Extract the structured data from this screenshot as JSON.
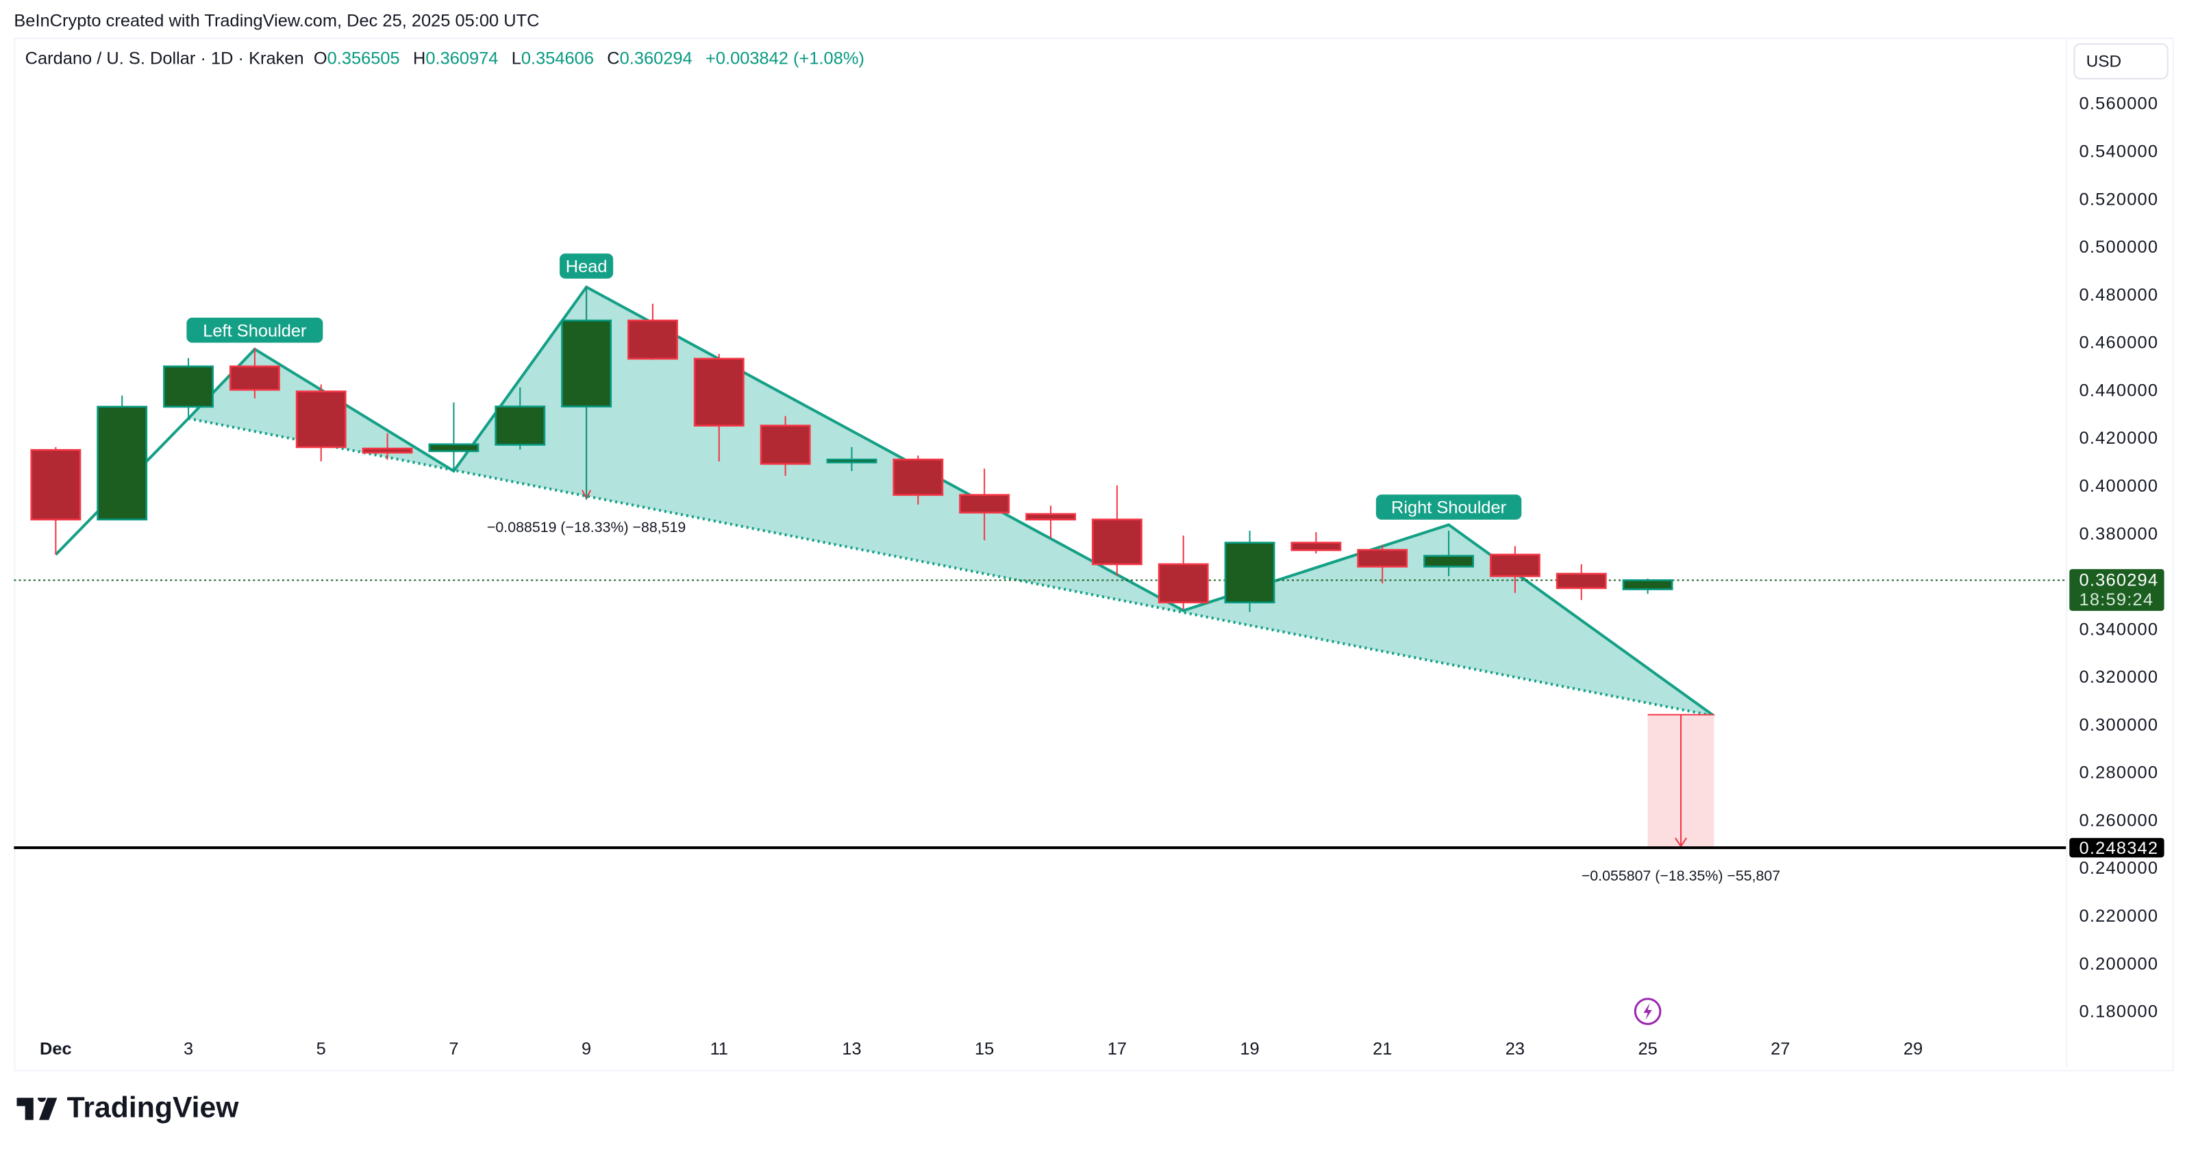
{
  "caption": "BeInCrypto created with TradingView.com, Dec 25, 2025 05:00 UTC",
  "legend": {
    "symbol": "Cardano / U. S. Dollar · 1D · Kraken",
    "o_label": "O",
    "o": "0.356505",
    "h_label": "H",
    "h": "0.360974",
    "l_label": "L",
    "l": "0.354606",
    "c_label": "C",
    "c": "0.360294",
    "change": "+0.003842 (+1.08%)"
  },
  "currency_button": "USD",
  "price_axis": {
    "ticks": [
      "0.560000",
      "0.540000",
      "0.520000",
      "0.500000",
      "0.480000",
      "0.460000",
      "0.440000",
      "0.420000",
      "0.400000",
      "0.380000",
      "0.340000",
      "0.320000",
      "0.300000",
      "0.280000",
      "0.260000",
      "0.240000",
      "0.220000",
      "0.200000",
      "0.180000"
    ],
    "current_price": "0.360294",
    "countdown": "18:59:24",
    "target_price": "0.248342"
  },
  "time_axis": {
    "ticks": [
      {
        "day": 1,
        "label": "Dec"
      },
      {
        "day": 3,
        "label": "3"
      },
      {
        "day": 5,
        "label": "5"
      },
      {
        "day": 7,
        "label": "7"
      },
      {
        "day": 9,
        "label": "9"
      },
      {
        "day": 11,
        "label": "11"
      },
      {
        "day": 13,
        "label": "13"
      },
      {
        "day": 15,
        "label": "15"
      },
      {
        "day": 17,
        "label": "17"
      },
      {
        "day": 19,
        "label": "19"
      },
      {
        "day": 21,
        "label": "21"
      },
      {
        "day": 23,
        "label": "23"
      },
      {
        "day": 25,
        "label": "25"
      },
      {
        "day": 27,
        "label": "27"
      },
      {
        "day": 29,
        "label": "29"
      }
    ]
  },
  "colors": {
    "up_body": "#1b5e20",
    "up_border": "#089981",
    "down_body": "#b22833",
    "down_border": "#f23645",
    "pattern_line": "#14a086",
    "pattern_fill": "#b2e3dc",
    "target_fill": "#fcdde0",
    "label_bg": "#14a086",
    "lightning": "#9c27b0"
  },
  "annotations": {
    "left_shoulder": "Left Shoulder",
    "head": "Head",
    "right_shoulder": "Right Shoulder",
    "head_measure": "−0.088519 (−18.33%) −88,519",
    "target_measure": "−0.055807 (−18.35%) −55,807"
  },
  "brand": "TradingView",
  "chart_data": {
    "type": "candlestick",
    "x_unit": "day of December 2025",
    "ylim": [
      0.17,
      0.57
    ],
    "candles": [
      {
        "day": 1,
        "o": 0.4148,
        "h": 0.416,
        "l": 0.371,
        "c": 0.3857
      },
      {
        "day": 2,
        "o": 0.3857,
        "h": 0.4376,
        "l": 0.3857,
        "c": 0.4329
      },
      {
        "day": 3,
        "o": 0.4329,
        "h": 0.4533,
        "l": 0.4282,
        "c": 0.4498
      },
      {
        "day": 4,
        "o": 0.4498,
        "h": 0.4574,
        "l": 0.4364,
        "c": 0.44
      },
      {
        "day": 5,
        "o": 0.4393,
        "h": 0.4422,
        "l": 0.41,
        "c": 0.416
      },
      {
        "day": 6,
        "o": 0.4154,
        "h": 0.4218,
        "l": 0.4107,
        "c": 0.4137
      },
      {
        "day": 7,
        "o": 0.4143,
        "h": 0.4347,
        "l": 0.406,
        "c": 0.4172
      },
      {
        "day": 8,
        "o": 0.417,
        "h": 0.441,
        "l": 0.415,
        "c": 0.433
      },
      {
        "day": 9,
        "o": 0.433,
        "h": 0.483,
        "l": 0.394,
        "c": 0.469
      },
      {
        "day": 10,
        "o": 0.469,
        "h": 0.476,
        "l": 0.4525,
        "c": 0.453
      },
      {
        "day": 11,
        "o": 0.453,
        "h": 0.455,
        "l": 0.41,
        "c": 0.425
      },
      {
        "day": 12,
        "o": 0.425,
        "h": 0.429,
        "l": 0.404,
        "c": 0.409
      },
      {
        "day": 13,
        "o": 0.4096,
        "h": 0.416,
        "l": 0.406,
        "c": 0.4108
      },
      {
        "day": 14,
        "o": 0.4108,
        "h": 0.4125,
        "l": 0.392,
        "c": 0.396
      },
      {
        "day": 15,
        "o": 0.396,
        "h": 0.407,
        "l": 0.377,
        "c": 0.3886
      },
      {
        "day": 16,
        "o": 0.388,
        "h": 0.3915,
        "l": 0.378,
        "c": 0.3857
      },
      {
        "day": 17,
        "o": 0.3857,
        "h": 0.4,
        "l": 0.362,
        "c": 0.367
      },
      {
        "day": 18,
        "o": 0.367,
        "h": 0.379,
        "l": 0.348,
        "c": 0.351
      },
      {
        "day": 19,
        "o": 0.351,
        "h": 0.381,
        "l": 0.347,
        "c": 0.376
      },
      {
        "day": 20,
        "o": 0.376,
        "h": 0.3804,
        "l": 0.3715,
        "c": 0.3729
      },
      {
        "day": 21,
        "o": 0.373,
        "h": 0.375,
        "l": 0.359,
        "c": 0.366
      },
      {
        "day": 22,
        "o": 0.366,
        "h": 0.381,
        "l": 0.362,
        "c": 0.3705
      },
      {
        "day": 23,
        "o": 0.371,
        "h": 0.3746,
        "l": 0.355,
        "c": 0.362
      },
      {
        "day": 24,
        "o": 0.363,
        "h": 0.367,
        "l": 0.352,
        "c": 0.357
      },
      {
        "day": 25,
        "o": 0.356505,
        "h": 0.360974,
        "l": 0.354606,
        "c": 0.360294
      }
    ],
    "pattern_points": [
      [
        1,
        0.371
      ],
      [
        3,
        0.428
      ],
      [
        4,
        0.457
      ],
      [
        7,
        0.406
      ],
      [
        9,
        0.483
      ],
      [
        18,
        0.3476
      ],
      [
        22,
        0.3835
      ],
      [
        26,
        0.3035
      ]
    ],
    "neckline": [
      [
        3,
        0.428
      ],
      [
        26,
        0.3035
      ]
    ],
    "head_measure": {
      "day": 9,
      "from": 0.483,
      "to": 0.3945
    },
    "target_box": {
      "from_day": 25,
      "to_day": 26,
      "top": 0.304,
      "bottom": 0.248342
    },
    "target_line": 0.248342,
    "current_price": 0.360294
  }
}
